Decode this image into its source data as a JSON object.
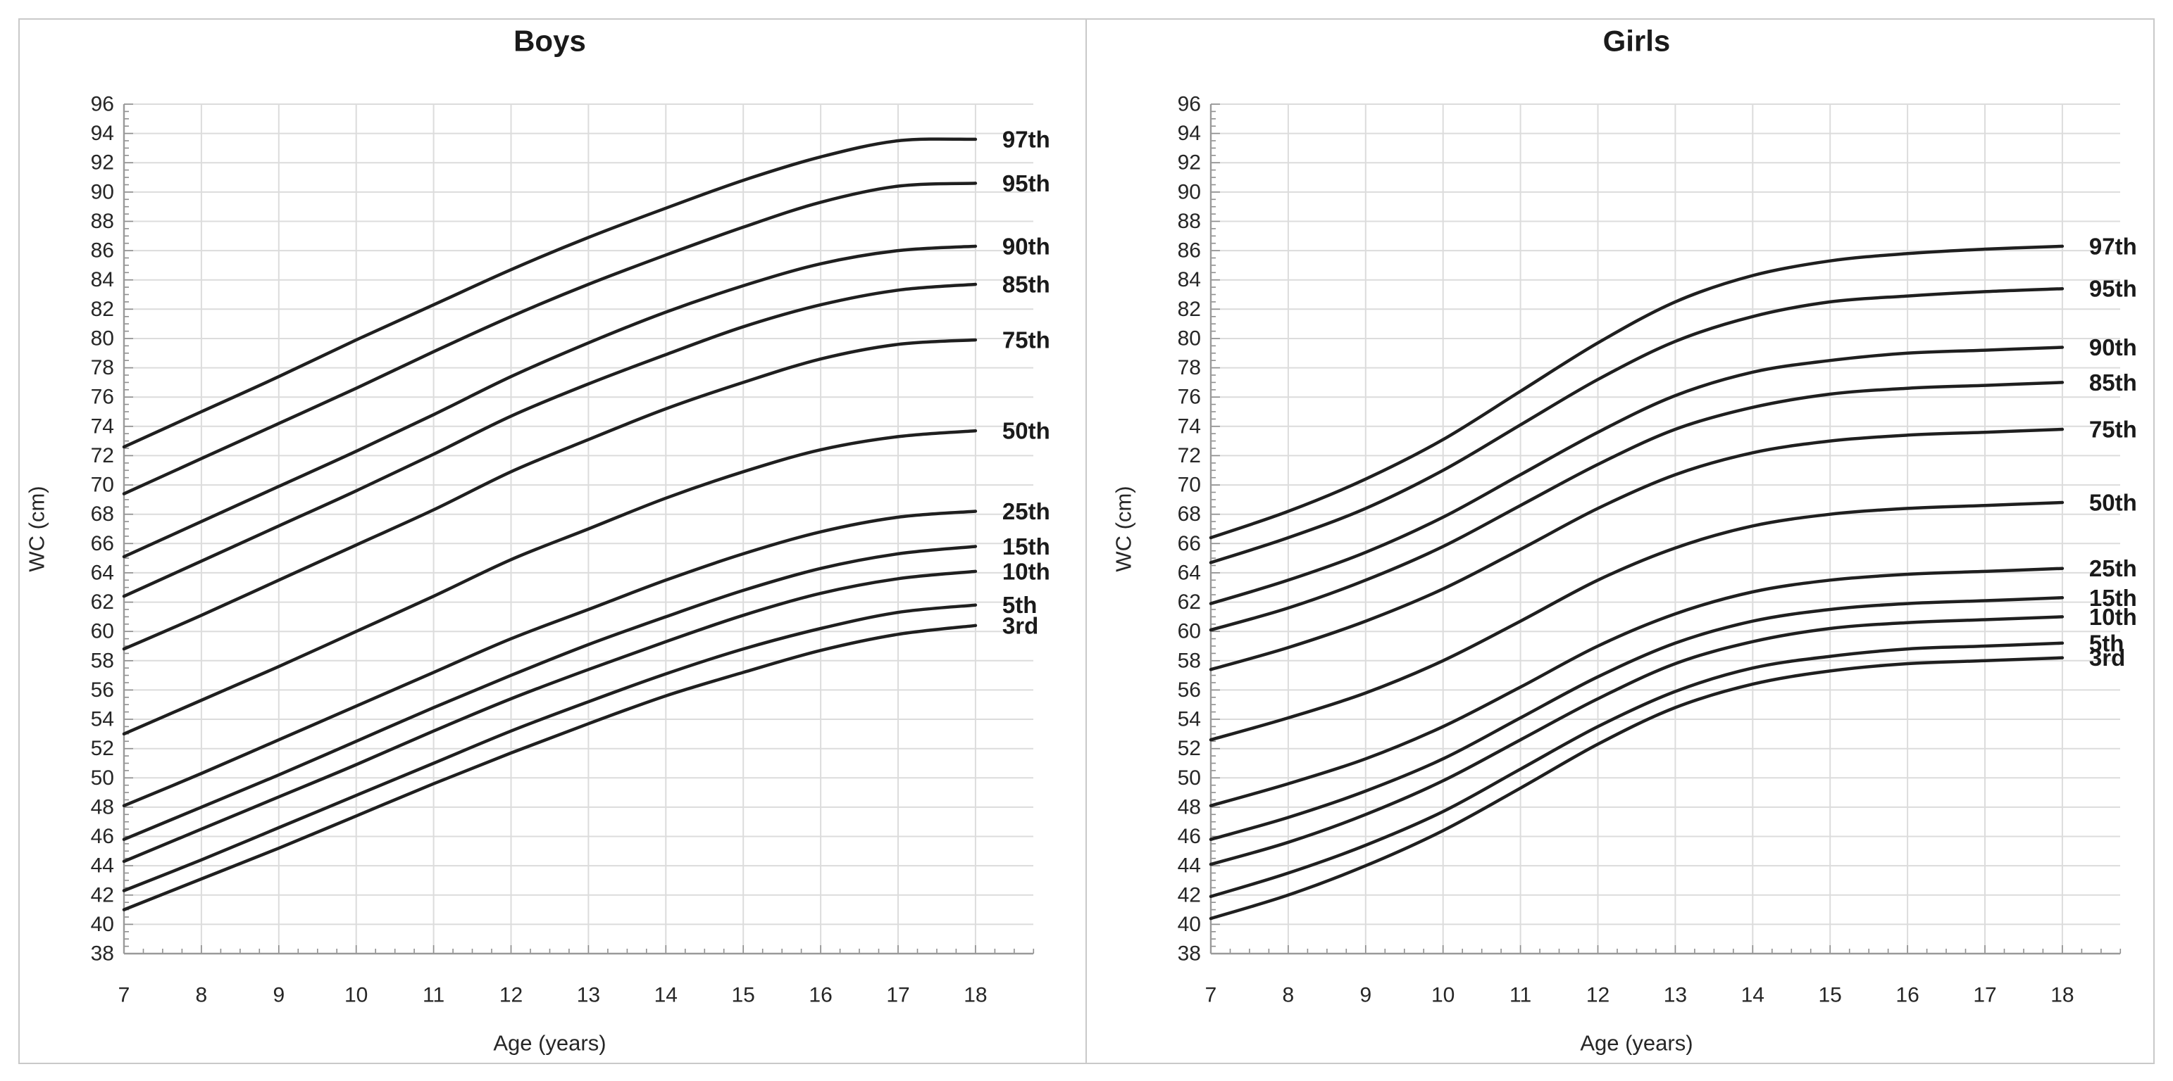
{
  "figure": {
    "background": "#ffffff",
    "frame_border_color": "#c9c9c9",
    "divider_color": "#c9c9c9",
    "grid_color": "#dcdcdc",
    "axis_color": "#9a9a9a",
    "tick_color": "#8f8f8f",
    "curve_color": "#1f1f1f",
    "tick_label_color": "#262626",
    "title_color": "#1a1a1a"
  },
  "chart_data": [
    {
      "type": "line",
      "title": "Boys",
      "xlabel": "Age (years)",
      "ylabel": "WC (cm)",
      "x": [
        7,
        8,
        9,
        10,
        11,
        12,
        13,
        14,
        15,
        16,
        17,
        18
      ],
      "xlim": [
        7,
        18.75
      ],
      "ylim": [
        38,
        96
      ],
      "ytick_step": 2,
      "xtick_step": 1,
      "grid": true,
      "legend_position": "right-of-line-ends",
      "series": [
        {
          "name": "97th",
          "values": [
            72.6,
            75.0,
            77.4,
            79.9,
            82.3,
            84.7,
            86.9,
            88.9,
            90.8,
            92.4,
            93.5,
            93.6
          ]
        },
        {
          "name": "95th",
          "values": [
            69.4,
            71.8,
            74.2,
            76.6,
            79.1,
            81.5,
            83.7,
            85.7,
            87.6,
            89.3,
            90.4,
            90.6
          ]
        },
        {
          "name": "90th",
          "values": [
            65.1,
            67.5,
            69.9,
            72.3,
            74.8,
            77.4,
            79.7,
            81.8,
            83.6,
            85.1,
            86.0,
            86.3
          ]
        },
        {
          "name": "85th",
          "values": [
            62.4,
            64.8,
            67.2,
            69.6,
            72.1,
            74.7,
            76.9,
            78.9,
            80.8,
            82.3,
            83.3,
            83.7
          ]
        },
        {
          "name": "75th",
          "values": [
            58.8,
            61.1,
            63.5,
            65.9,
            68.3,
            70.9,
            73.1,
            75.2,
            77.0,
            78.6,
            79.6,
            79.9
          ]
        },
        {
          "name": "50th",
          "values": [
            53.0,
            55.3,
            57.6,
            60.0,
            62.4,
            64.9,
            67.0,
            69.1,
            70.9,
            72.4,
            73.3,
            73.7
          ]
        },
        {
          "name": "25th",
          "values": [
            48.1,
            50.3,
            52.6,
            54.9,
            57.2,
            59.5,
            61.5,
            63.5,
            65.3,
            66.8,
            67.8,
            68.2
          ]
        },
        {
          "name": "15th",
          "values": [
            45.8,
            48.0,
            50.2,
            52.5,
            54.8,
            57.0,
            59.1,
            61.0,
            62.8,
            64.3,
            65.3,
            65.8
          ]
        },
        {
          "name": "10th",
          "values": [
            44.3,
            46.5,
            48.7,
            50.9,
            53.2,
            55.4,
            57.4,
            59.3,
            61.1,
            62.6,
            63.6,
            64.1
          ]
        },
        {
          "name": "5th",
          "values": [
            42.3,
            44.4,
            46.6,
            48.8,
            51.0,
            53.2,
            55.2,
            57.1,
            58.8,
            60.2,
            61.3,
            61.8
          ]
        },
        {
          "name": "3rd",
          "values": [
            41.0,
            43.1,
            45.2,
            47.4,
            49.6,
            51.7,
            53.7,
            55.6,
            57.2,
            58.7,
            59.8,
            60.4
          ]
        }
      ]
    },
    {
      "type": "line",
      "title": "Girls",
      "xlabel": "Age (years)",
      "ylabel": "WC (cm)",
      "x": [
        7,
        8,
        9,
        10,
        11,
        12,
        13,
        14,
        15,
        16,
        17,
        18
      ],
      "xlim": [
        7,
        18.75
      ],
      "ylim": [
        38,
        96
      ],
      "ytick_step": 2,
      "xtick_step": 1,
      "grid": true,
      "legend_position": "right-of-line-ends",
      "series": [
        {
          "name": "97th",
          "values": [
            66.4,
            68.2,
            70.4,
            73.1,
            76.4,
            79.7,
            82.5,
            84.3,
            85.3,
            85.8,
            86.1,
            86.3
          ]
        },
        {
          "name": "95th",
          "values": [
            64.7,
            66.4,
            68.4,
            71.0,
            74.1,
            77.2,
            79.8,
            81.5,
            82.5,
            82.9,
            83.2,
            83.4
          ]
        },
        {
          "name": "90th",
          "values": [
            61.9,
            63.5,
            65.4,
            67.8,
            70.7,
            73.6,
            76.1,
            77.7,
            78.5,
            79.0,
            79.2,
            79.4
          ]
        },
        {
          "name": "85th",
          "values": [
            60.1,
            61.6,
            63.5,
            65.8,
            68.6,
            71.4,
            73.8,
            75.3,
            76.2,
            76.6,
            76.8,
            77.0
          ]
        },
        {
          "name": "75th",
          "values": [
            57.4,
            58.9,
            60.7,
            62.9,
            65.6,
            68.4,
            70.7,
            72.2,
            73.0,
            73.4,
            73.6,
            73.8
          ]
        },
        {
          "name": "50th",
          "values": [
            52.6,
            54.1,
            55.8,
            58.0,
            60.7,
            63.5,
            65.7,
            67.2,
            68.0,
            68.4,
            68.6,
            68.8
          ]
        },
        {
          "name": "25th",
          "values": [
            48.1,
            49.6,
            51.3,
            53.5,
            56.2,
            59.0,
            61.2,
            62.7,
            63.5,
            63.9,
            64.1,
            64.3
          ]
        },
        {
          "name": "15th",
          "values": [
            45.8,
            47.3,
            49.1,
            51.3,
            54.1,
            56.9,
            59.2,
            60.7,
            61.5,
            61.9,
            62.1,
            62.3
          ]
        },
        {
          "name": "10th",
          "values": [
            44.1,
            45.6,
            47.5,
            49.8,
            52.6,
            55.4,
            57.8,
            59.3,
            60.2,
            60.6,
            60.8,
            61.0
          ]
        },
        {
          "name": "5th",
          "values": [
            41.9,
            43.5,
            45.4,
            47.7,
            50.6,
            53.5,
            55.9,
            57.5,
            58.3,
            58.8,
            59.0,
            59.2
          ]
        },
        {
          "name": "3rd",
          "values": [
            40.4,
            42.0,
            44.0,
            46.4,
            49.3,
            52.3,
            54.8,
            56.4,
            57.3,
            57.8,
            58.0,
            58.2
          ]
        }
      ]
    }
  ]
}
